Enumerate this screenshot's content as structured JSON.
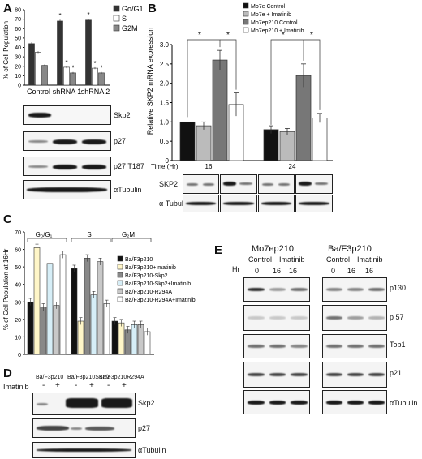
{
  "panels": {
    "A": {
      "label": "A",
      "legend": [
        "Go/G1",
        "S",
        "G2M"
      ],
      "ylabel": "% of Cell Population",
      "yticks": [
        "0",
        "10",
        "20",
        "30",
        "40",
        "50",
        "60",
        "70",
        "80"
      ],
      "categories": [
        "Control",
        "shRNA 1",
        "shRNA 2"
      ],
      "blot_labels": [
        "Skp2",
        "p27",
        "p27 T187",
        "αTubulin"
      ]
    },
    "B": {
      "label": "B",
      "legend": [
        "Mo7e Control",
        "Mo7e + Imatinib",
        "Mo7ep210 Control",
        "Mo7ep210 + Imatinib"
      ],
      "ylabel": "Relative SKP2 mRNA expression",
      "yticks": [
        "0",
        "0.5",
        "1.0",
        "1.5",
        "2.0",
        "2.5",
        "3.0"
      ],
      "time_label": "Time (Hr)",
      "times": [
        "16",
        "24"
      ],
      "blot_labels": [
        "SKP2",
        "α Tubulin"
      ]
    },
    "C": {
      "label": "C",
      "groups": [
        "G₀/G₁",
        "S",
        "G₂M"
      ],
      "ylabel": "% of Cell Population at 16Hr",
      "yticks": [
        "0",
        "10",
        "20",
        "30",
        "40",
        "50",
        "60",
        "70"
      ],
      "legend": [
        "Ba/F3p210",
        "Ba/F3p210+Imatinib",
        "Ba/F3p210-Skp2",
        "Ba/F3p210-Skp2+Imatinib",
        "Ba/F3p210-R294A",
        "Ba/F3p210-R294A+Imatinib"
      ]
    },
    "D": {
      "label": "D",
      "lines": [
        "Ba/F3p210",
        "Ba/F3p210SKP2",
        "Ba/F3p210R294A"
      ],
      "row_label": "Imatinib",
      "signs": [
        "-",
        "+",
        "-",
        "+",
        "-",
        "+"
      ],
      "blot_labels": [
        "Skp2",
        "p27",
        "αTubulin"
      ]
    },
    "E": {
      "label": "E",
      "lines": [
        "Mo7ep210",
        "Ba/F3p210"
      ],
      "conditions": [
        "Control",
        "Imatinib"
      ],
      "hr_label": "Hr",
      "hours": [
        "0",
        "16",
        "16"
      ],
      "blot_labels": [
        "p130",
        "p 57",
        "Tob1",
        "p21",
        "αTubulin"
      ]
    }
  },
  "chart_data": [
    {
      "type": "bar",
      "panel": "A",
      "categories": [
        "Control",
        "shRNA 1",
        "shRNA 2"
      ],
      "series": [
        {
          "name": "Go/G1",
          "values": [
            44,
            68,
            69
          ],
          "color": "#333333"
        },
        {
          "name": "S",
          "values": [
            35,
            19,
            18
          ],
          "color": "#ffffff"
        },
        {
          "name": "G2M",
          "values": [
            21,
            13,
            13
          ],
          "color": "#888888"
        }
      ],
      "errors": [
        [
          1.5,
          1.5,
          1.5
        ],
        [
          1,
          1,
          1
        ],
        [
          1,
          1,
          1
        ]
      ],
      "ylim": [
        0,
        80
      ],
      "significance": [
        "",
        "*",
        "*"
      ]
    },
    {
      "type": "bar",
      "panel": "B",
      "categories": [
        "16",
        "24"
      ],
      "series": [
        {
          "name": "Mo7e Control",
          "values": [
            1.0,
            0.8
          ],
          "color": "#111111"
        },
        {
          "name": "Mo7e + Imatinib",
          "values": [
            0.9,
            0.75
          ],
          "color": "#bbbbbb"
        },
        {
          "name": "Mo7ep210 Control",
          "values": [
            2.6,
            2.2
          ],
          "color": "#777777"
        },
        {
          "name": "Mo7ep210 + Imatinib",
          "values": [
            1.45,
            1.1
          ],
          "color": "#ffffff"
        }
      ],
      "errors": [
        [
          0,
          0.1
        ],
        [
          0.1,
          0.08
        ],
        [
          0.25,
          0.3
        ],
        [
          0.3,
          0.12
        ]
      ],
      "ylim": [
        0,
        3.0
      ]
    },
    {
      "type": "bar",
      "panel": "C",
      "categories": [
        "G0/G1",
        "S",
        "G2M"
      ],
      "series": [
        {
          "name": "Ba/F3p210",
          "values": [
            30,
            49,
            19
          ],
          "color": "#111111"
        },
        {
          "name": "Ba/F3p210+Imatinib",
          "values": [
            61,
            19,
            18
          ],
          "color": "#fff6c8"
        },
        {
          "name": "Ba/F3p210-Skp2",
          "values": [
            27,
            55,
            14
          ],
          "color": "#888888"
        },
        {
          "name": "Ba/F3p210-Skp2+Imatinib",
          "values": [
            52,
            34,
            17
          ],
          "color": "#d6eef7"
        },
        {
          "name": "Ba/F3p210-R294A",
          "values": [
            28,
            53,
            17
          ],
          "color": "#c8c8c8"
        },
        {
          "name": "Ba/F3p210-R294A+Imatinib",
          "values": [
            57,
            29,
            13
          ],
          "color": "#ffffff"
        }
      ],
      "ylim": [
        0,
        70
      ]
    }
  ]
}
